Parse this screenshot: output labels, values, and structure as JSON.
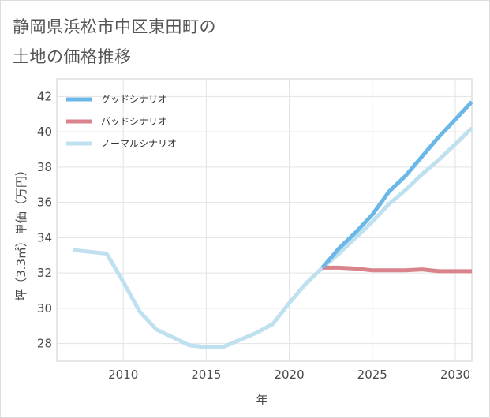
{
  "title": {
    "line1": "静岡県浜松市中区東田町の",
    "line2": "土地の価格推移"
  },
  "chart_data": {
    "type": "line",
    "xlabel": "年",
    "ylabel": "坪（3.3㎡）単価（万円）",
    "xlim": [
      2006,
      2031
    ],
    "ylim": [
      27,
      43
    ],
    "x_ticks": [
      2010,
      2015,
      2020,
      2025,
      2030
    ],
    "y_ticks": [
      28,
      30,
      32,
      34,
      36,
      38,
      40,
      42
    ],
    "grid": true,
    "legend_position": "top-left",
    "series": [
      {
        "name": "グッドシナリオ",
        "color": "#6bb8e8",
        "x": [
          2022,
          2023,
          2024,
          2025,
          2026,
          2027,
          2028,
          2029,
          2030,
          2031
        ],
        "values": [
          32.3,
          33.4,
          34.3,
          35.3,
          36.6,
          37.5,
          38.6,
          39.7,
          40.7,
          41.7
        ]
      },
      {
        "name": "バッドシナリオ",
        "color": "#d9848c",
        "x": [
          2022,
          2023,
          2024,
          2025,
          2026,
          2027,
          2028,
          2029,
          2030,
          2031
        ],
        "values": [
          32.3,
          32.3,
          32.25,
          32.15,
          32.15,
          32.15,
          32.2,
          32.1,
          32.1,
          32.1
        ]
      },
      {
        "name": "ノーマルシナリオ",
        "color": "#bfe0ef",
        "x": [
          2007,
          2008,
          2009,
          2010,
          2011,
          2012,
          2013,
          2014,
          2015,
          2016,
          2017,
          2018,
          2019,
          2020,
          2021,
          2022,
          2023,
          2024,
          2025,
          2026,
          2027,
          2028,
          2029,
          2030,
          2031
        ],
        "values": [
          33.3,
          33.2,
          33.1,
          31.5,
          29.8,
          28.8,
          28.35,
          27.9,
          27.8,
          27.8,
          28.2,
          28.6,
          29.1,
          30.3,
          31.4,
          32.3,
          33.1,
          34.0,
          34.9,
          35.9,
          36.7,
          37.6,
          38.4,
          39.3,
          40.2
        ]
      }
    ]
  }
}
